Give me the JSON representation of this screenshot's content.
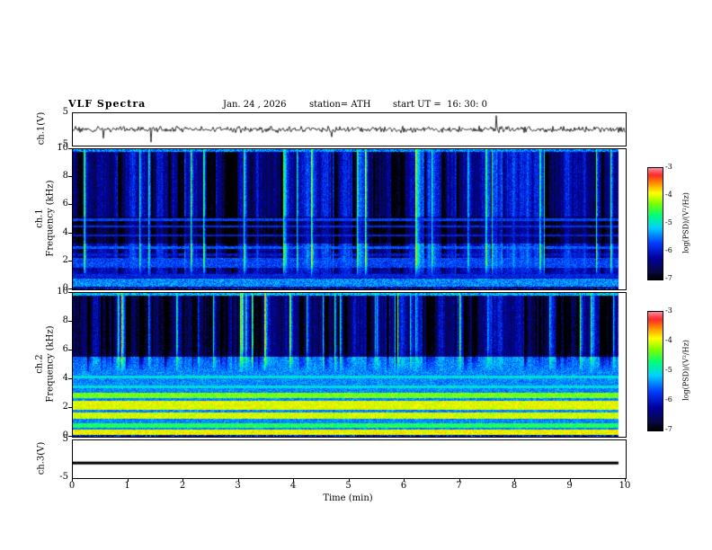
{
  "header": {
    "title": "VLF Spectra",
    "date": "Jan. 24 , 2026",
    "station": "station= ATH",
    "start_ut": "start UT =  16: 30: 0"
  },
  "axes": {
    "x_label": "Time (min)",
    "x_ticks": [
      "0",
      "1",
      "2",
      "3",
      "4",
      "5",
      "6",
      "7",
      "8",
      "9",
      "10"
    ],
    "freq_ticks": [
      "10",
      "8",
      "6",
      "4",
      "2",
      "0"
    ],
    "volt_ticks": [
      "5",
      "-5"
    ],
    "wave1_ylabel": "ch.1(V)",
    "spec1_ylabel_ch": "ch.1",
    "spec1_ylabel_freq": "Frequency (kHz)",
    "spec2_ylabel_ch": "ch.2",
    "spec2_ylabel_freq": "Frequency (kHz)",
    "wave3_ylabel": "ch.3(V)",
    "colorbar_ticks": [
      "-3",
      "-4",
      "-5",
      "-6",
      "-7"
    ],
    "colorbar_label": "log(PSD)/(V²/Hz)"
  },
  "chart_data": [
    {
      "type": "line",
      "name": "ch1-waveform",
      "ylabel": "ch.1(V)",
      "xlabel": "Time (min)",
      "xlim": [
        0,
        10
      ],
      "ylim": [
        -5,
        5
      ],
      "summary": "Channel 1 voltage vs time: continuous noise band of roughly ±1 V about 0 V with intermittent sharp impulsive spikes reaching about ±4 V throughout the 10 minutes",
      "render": {
        "seed": 20260124,
        "fuzz": 0.55,
        "spike_prob": 0.016,
        "spike_amp": 2.4
      }
    },
    {
      "type": "heatmap",
      "name": "ch1-spectrogram",
      "ylabel": "ch.1 Frequency (kHz)",
      "xlabel": "Time (min)",
      "xlim": [
        0,
        10
      ],
      "ylim": [
        0,
        10
      ],
      "zlabel": "log(PSD)/(V²/Hz)",
      "zlim": [
        -7,
        -3
      ],
      "summary": "Channel 1 VLF spectrogram: deep-blue background near log PSD -6.2, dense vertical sferic streaks (cyan/green) above ~1 kHz, darker band between 3.3 and 5.2 kHz, horizontal emission lines near 0.5, 1, 1.9, 3, 3.9, 4.5 and 5 kHz, speckled dark band at the bottom edge",
      "render": {
        "seed": 101,
        "base": -6.1,
        "noise": 0.55,
        "streak_prob": 0.055,
        "dark_prob": 0.045,
        "streak_gain": 1.0,
        "streak_f0": 0.8,
        "streak_f1": 1.9,
        "regions": [
          {
            "f0": 3.3,
            "f1": 5.2,
            "delta": -0.55
          },
          {
            "f0": 5.2,
            "f1": 10,
            "delta": -0.2
          },
          {
            "f0": 0,
            "f1": 0.2,
            "delta": -0.8
          }
        ],
        "bands": [
          {
            "f": 9.95,
            "w": 0.1,
            "level": -5.4,
            "jitter": 0.9
          },
          {
            "f": 0.5,
            "w": 0.3,
            "level": -5.4,
            "jitter": 0.7
          },
          {
            "f": 1.0,
            "w": 0.15,
            "level": -5.9,
            "jitter": 0.5
          },
          {
            "f": 1.9,
            "w": 0.35,
            "level": -5.7,
            "jitter": 0.6
          },
          {
            "f": 2.5,
            "w": 0.1,
            "level": -6.0,
            "jitter": 0.5
          },
          {
            "f": 3.0,
            "w": 0.1,
            "level": -5.6,
            "jitter": 0.5
          },
          {
            "f": 3.9,
            "w": 0.07,
            "level": -5.9,
            "jitter": 0.4
          },
          {
            "f": 4.5,
            "w": 0.07,
            "level": -5.8,
            "jitter": 0.4
          },
          {
            "f": 5.0,
            "w": 0.07,
            "level": -5.7,
            "jitter": 0.4
          },
          {
            "f": 0.1,
            "w": 0.12,
            "level": -6.3,
            "jitter": 1.6
          }
        ]
      }
    },
    {
      "type": "heatmap",
      "name": "ch2-spectrogram",
      "ylabel": "ch.2 Frequency (kHz)",
      "xlabel": "Time (min)",
      "xlim": [
        0,
        10
      ],
      "ylim": [
        0,
        10
      ],
      "zlabel": "log(PSD)/(V²/Hz)",
      "zlim": [
        -7,
        -3
      ],
      "summary": "Channel 2 VLF spectrogram: strong yellow/green horizontal emission bands near 0.35, 0.8, 1.5, 2.2 and 2.9 kHz (log PSD about -4), green lines near 3.5 and 4.2 kHz, cyan mottled mid band, dark-blue streaky region with vertical sferics and black patches above ~5.5 kHz",
      "render": {
        "seed": 202,
        "base": -5.4,
        "noise": 0.55,
        "streak_prob": 0.06,
        "dark_prob": 0.06,
        "streak_gain": 1.1,
        "streak_f0": 4.5,
        "streak_f1": 6.2,
        "regions": [
          {
            "f0": 5.6,
            "f1": 10,
            "delta": -1.0
          },
          {
            "f0": 0,
            "f1": 0.18,
            "delta": -1.4
          }
        ],
        "bands": [
          {
            "f": 9.95,
            "w": 0.1,
            "level": -5.2,
            "jitter": 0.9
          },
          {
            "f": 0.35,
            "w": 0.2,
            "level": -3.9,
            "jitter": 0.5
          },
          {
            "f": 0.8,
            "w": 0.15,
            "level": -4.6,
            "jitter": 0.5
          },
          {
            "f": 1.5,
            "w": 0.25,
            "level": -4.0,
            "jitter": 0.5
          },
          {
            "f": 2.2,
            "w": 0.3,
            "level": -3.95,
            "jitter": 0.5
          },
          {
            "f": 2.9,
            "w": 0.2,
            "level": -4.3,
            "jitter": 0.5
          },
          {
            "f": 3.5,
            "w": 0.1,
            "level": -5.0,
            "jitter": 0.4
          },
          {
            "f": 4.2,
            "w": 0.1,
            "level": -5.0,
            "jitter": 0.4
          },
          {
            "f": 0.08,
            "w": 0.1,
            "level": -6.2,
            "jitter": 1.8
          }
        ]
      }
    },
    {
      "type": "line",
      "name": "ch3-waveform",
      "ylabel": "ch.3(V)",
      "xlabel": "Time (min)",
      "xlim": [
        0,
        10
      ],
      "ylim": [
        -5,
        5
      ],
      "summary": "Channel 3 voltage: perfectly flat thick black trace at a constant level of about -1 V for the entire interval",
      "render": {
        "seed": 3,
        "value": -1,
        "thickness": 3
      }
    }
  ],
  "colorbar": {
    "range": [
      -7,
      -3
    ],
    "label": "log(PSD)/(V²/Hz)",
    "scale_colors_bottom_to_top": [
      "#000000",
      "#000082",
      "#0040ff",
      "#00d2ff",
      "#00ff78",
      "#78ff00",
      "#ffff00",
      "#ff8c00",
      "#ff2828",
      "#ff8296"
    ]
  }
}
